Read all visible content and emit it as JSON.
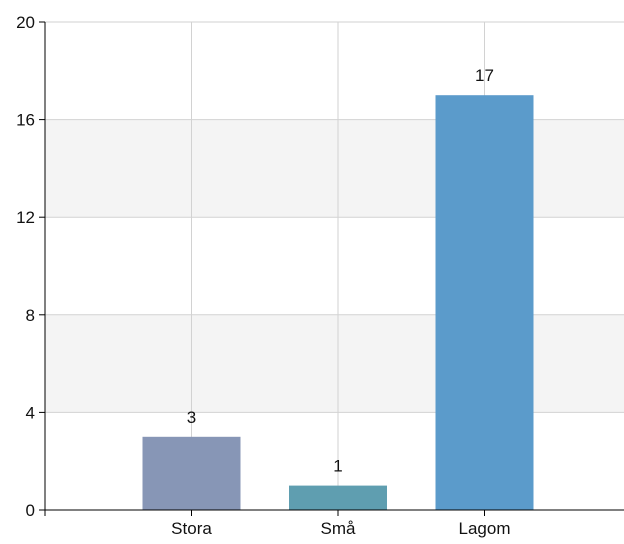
{
  "chart_data": {
    "type": "bar",
    "categories": [
      "Stora",
      "Små",
      "Lagom"
    ],
    "values": [
      3,
      1,
      17
    ],
    "colors": [
      "#8796b6",
      "#5f9eb0",
      "#5b9bcb"
    ],
    "ylim": [
      0,
      20
    ],
    "yticks": [
      0,
      4,
      8,
      12,
      16,
      20
    ],
    "title": "",
    "xlabel": "",
    "ylabel": "",
    "grid": true,
    "band_color": "#f4f4f4",
    "grid_color": "#d2d2d2",
    "axis_color": "#000000"
  }
}
